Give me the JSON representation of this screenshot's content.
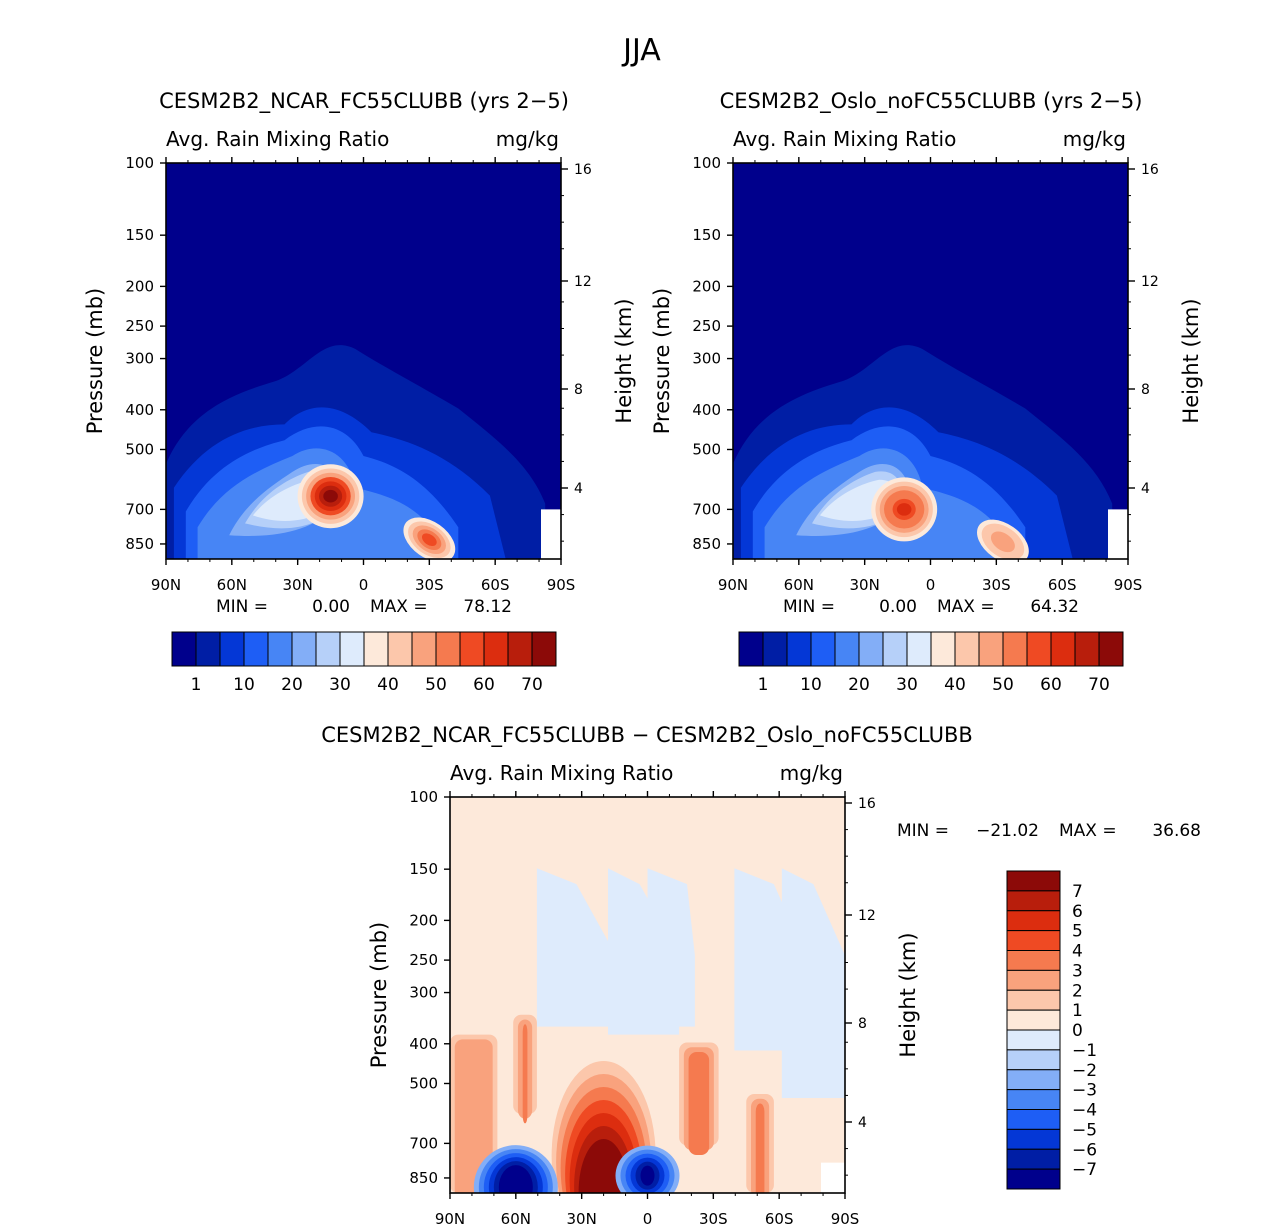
{
  "figure_title": "JJA",
  "chart_data": [
    {
      "type": "heatmap",
      "id": "ncar",
      "title": "CESM2B2_NCAR_FC55CLUBB (yrs 2−5)",
      "subtitle_left": "Avg. Rain Mixing Ratio",
      "subtitle_right": "mg/kg",
      "ylabel": "Pressure (mb)",
      "y2label": "Height (km)",
      "xlabel": "",
      "x_ticks": [
        "90N",
        "60N",
        "30N",
        "0",
        "30S",
        "60S",
        "90S"
      ],
      "xlim": [
        90,
        -90
      ],
      "y_ticks": [
        100,
        150,
        200,
        250,
        300,
        400,
        500,
        700,
        850
      ],
      "ylim": [
        100,
        925
      ],
      "y2_ticks": [
        16,
        12,
        8,
        4
      ],
      "min_label": "MIN =",
      "min_value": "0.00",
      "max_label": "MAX =",
      "max_value": "78.12",
      "colorbar_labels": [
        "1",
        "10",
        "20",
        "30",
        "40",
        "50",
        "60",
        "70"
      ],
      "colorbar_colors": [
        "#00008c",
        "#001ea5",
        "#0437d6",
        "#1e5ef5",
        "#4785f5",
        "#83aef7",
        "#b6d0f9",
        "#deebfc",
        "#fde9da",
        "#fcc7ab",
        "#f9a27d",
        "#f57a4f",
        "#ef4a23",
        "#dc2d0f",
        "#b81e0c",
        "#8c0a08"
      ],
      "features": [
        {
          "lat": 15,
          "p": 650,
          "value": 78
        },
        {
          "lat": -30,
          "p": 830,
          "value": 55
        }
      ]
    },
    {
      "type": "heatmap",
      "id": "oslo",
      "title": "CESM2B2_Oslo_noFC55CLUBB (yrs 2−5)",
      "subtitle_left": "Avg. Rain Mixing Ratio",
      "subtitle_right": "mg/kg",
      "ylabel": "Pressure (mb)",
      "y2label": "Height (km)",
      "xlabel": "",
      "x_ticks": [
        "90N",
        "60N",
        "30N",
        "0",
        "30S",
        "60S",
        "90S"
      ],
      "xlim": [
        90,
        -90
      ],
      "y_ticks": [
        100,
        150,
        200,
        250,
        300,
        400,
        500,
        700,
        850
      ],
      "ylim": [
        100,
        925
      ],
      "y2_ticks": [
        16,
        12,
        8,
        4
      ],
      "min_label": "MIN =",
      "min_value": "0.00",
      "max_label": "MAX =",
      "max_value": "64.32",
      "colorbar_labels": [
        "1",
        "10",
        "20",
        "30",
        "40",
        "50",
        "60",
        "70"
      ],
      "colorbar_colors": [
        "#00008c",
        "#001ea5",
        "#0437d6",
        "#1e5ef5",
        "#4785f5",
        "#83aef7",
        "#b6d0f9",
        "#deebfc",
        "#fde9da",
        "#fcc7ab",
        "#f9a27d",
        "#f57a4f",
        "#ef4a23",
        "#dc2d0f",
        "#b81e0c",
        "#8c0a08"
      ],
      "features": [
        {
          "lat": 12,
          "p": 700,
          "value": 64
        },
        {
          "lat": -33,
          "p": 840,
          "value": 50
        }
      ]
    },
    {
      "type": "heatmap",
      "id": "diff",
      "title": "CESM2B2_NCAR_FC55CLUBB − CESM2B2_Oslo_noFC55CLUBB",
      "subtitle_left": "Avg. Rain Mixing Ratio",
      "subtitle_right": "mg/kg",
      "ylabel": "Pressure (mb)",
      "y2label": "Height (km)",
      "xlabel": "",
      "x_ticks": [
        "90N",
        "60N",
        "30N",
        "0",
        "30S",
        "60S",
        "90S"
      ],
      "xlim": [
        90,
        -90
      ],
      "y_ticks": [
        100,
        150,
        200,
        250,
        300,
        400,
        500,
        700,
        850
      ],
      "ylim": [
        100,
        925
      ],
      "y2_ticks": [
        16,
        12,
        8,
        4
      ],
      "min_label": "MIN =",
      "min_value": "−21.02",
      "max_label": "MAX =",
      "max_value": "36.68",
      "colorbar_labels": [
        "7",
        "6",
        "5",
        "4",
        "3",
        "2",
        "1",
        "0",
        "−1",
        "−2",
        "−3",
        "−4",
        "−5",
        "−6",
        "−7"
      ],
      "colorbar_colors": [
        "#8c0a08",
        "#b81e0c",
        "#dc2d0f",
        "#ef4a23",
        "#f57a4f",
        "#f9a27d",
        "#fcc7ab",
        "#fde9da",
        "#deebfc",
        "#b6d0f9",
        "#83aef7",
        "#4785f5",
        "#1e5ef5",
        "#0437d6",
        "#001ea5",
        "#00008c"
      ],
      "features": [
        {
          "lat": 20,
          "p": 600,
          "value": 36.68
        },
        {
          "lat": 60,
          "p": 800,
          "value": -21.02
        },
        {
          "lat": 0,
          "p": 750,
          "value": -15
        }
      ]
    }
  ]
}
